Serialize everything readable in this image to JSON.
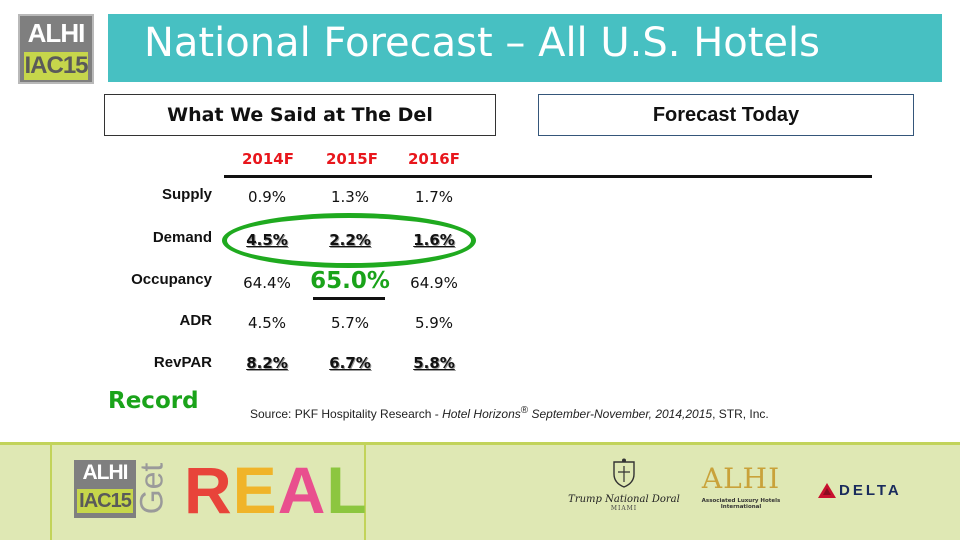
{
  "logo": {
    "line1": "ALHI",
    "line2": "IAC15"
  },
  "title": "National Forecast – All U.S. Hotels",
  "boxes": {
    "left": "What We Said at The Del",
    "right": "Forecast Today"
  },
  "table": {
    "columns": [
      "2014F",
      "2015F",
      "2016F"
    ],
    "rows": [
      {
        "label": "Supply",
        "values": [
          "0.9%",
          "1.3%",
          "1.7%"
        ]
      },
      {
        "label": "Demand",
        "values": [
          "4.5%",
          "2.2%",
          "1.6%"
        ]
      },
      {
        "label": "Occupancy",
        "values": [
          "64.4%",
          "65.0%",
          "64.9%"
        ]
      },
      {
        "label": "ADR",
        "values": [
          "4.5%",
          "5.7%",
          "5.9%"
        ]
      },
      {
        "label": "RevPAR",
        "values": [
          "8.2%",
          "6.7%",
          "5.8%"
        ]
      }
    ]
  },
  "record_label": "Record",
  "source": {
    "prefix": "Source: PKF Hospitality Research - ",
    "italic": "Hotel Horizons",
    "reg": "®",
    "italic2": " September-November, 2014,2015",
    "suffix": ", STR, Inc."
  },
  "footer": {
    "logo": {
      "line1": "ALHI",
      "line2": "IAC15"
    },
    "get": "Get",
    "real_letters": [
      "R",
      "E",
      "A",
      "L"
    ],
    "real_colors": [
      "#e8443a",
      "#f0b429",
      "#e94f8e",
      "#8cc63f"
    ],
    "trump": {
      "name": "Trump National Doral",
      "city": "MIAMI"
    },
    "alhi": {
      "name": "ALHI",
      "sub1": "Associated Luxury Hotels",
      "sub2": "International"
    },
    "delta": "DELTA"
  },
  "colors": {
    "title_bar": "#47c0c2",
    "header_red": "#e8161c",
    "record_green": "#1aa31a",
    "footer_bg": "#dfe8b4"
  }
}
